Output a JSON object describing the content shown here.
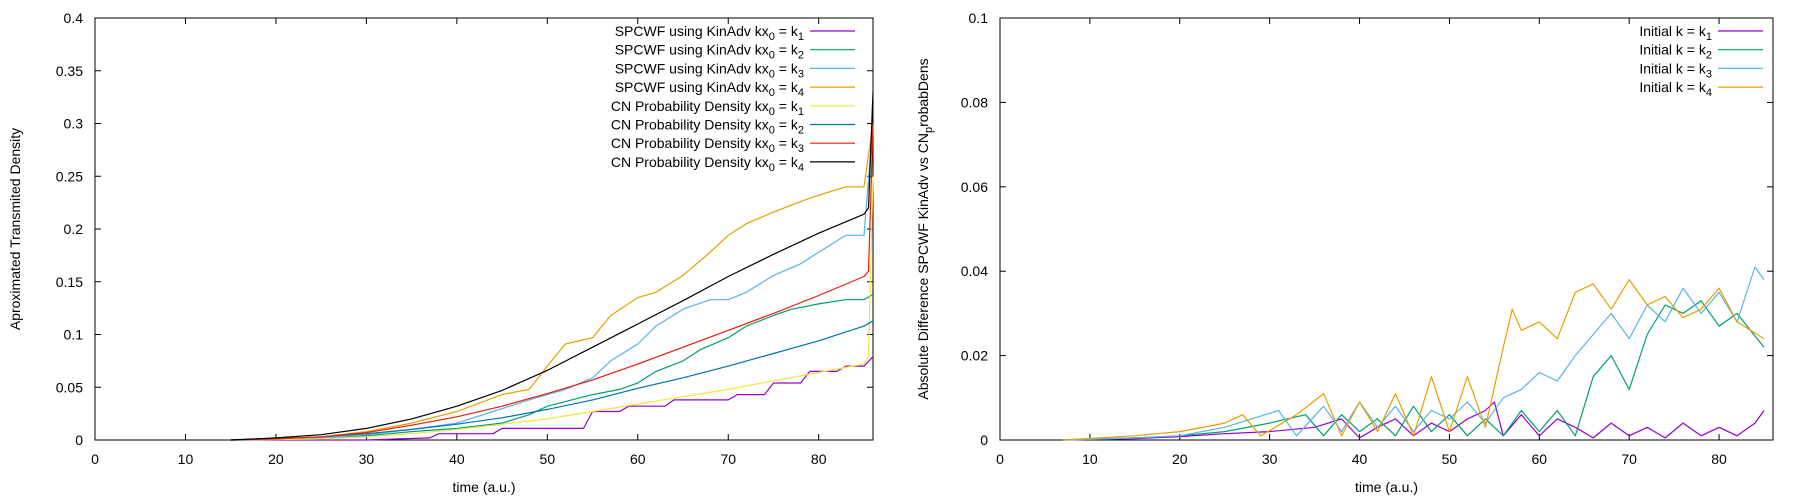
{
  "chart_data": [
    {
      "type": "line",
      "xlabel": "time (a.u.)",
      "ylabel": "Aproximated Transmited Density",
      "xlim": [
        0,
        86
      ],
      "ylim": [
        0,
        0.4
      ],
      "xticks": [
        0,
        10,
        20,
        30,
        40,
        50,
        60,
        70,
        80
      ],
      "yticks": [
        0,
        0.05,
        0.1,
        0.15,
        0.2,
        0.25,
        0.3,
        0.35,
        0.4
      ],
      "legend_position": "top-right",
      "series": [
        {
          "name": "SPCWF using KinAdv kx0 = k1",
          "legend": {
            "a": "SPCWF using KinAdv kx",
            "b": "0",
            "c": " = k",
            "d": "1"
          },
          "color": "#9400d3",
          "x": [
            15,
            30,
            37,
            38,
            44,
            45,
            54,
            55,
            58,
            59,
            63,
            64,
            70,
            71,
            74,
            75,
            78,
            79,
            82,
            83,
            85,
            86
          ],
          "y": [
            0,
            0,
            0.002,
            0.006,
            0.006,
            0.011,
            0.011,
            0.027,
            0.027,
            0.032,
            0.032,
            0.038,
            0.038,
            0.043,
            0.043,
            0.054,
            0.054,
            0.065,
            0.065,
            0.07,
            0.07,
            0.079
          ]
        },
        {
          "name": "SPCWF using KinAdv kx0 = k2",
          "legend": {
            "a": "SPCWF using KinAdv kx",
            "b": "0",
            "c": " = k",
            "d": "2"
          },
          "color": "#009e73",
          "x": [
            15,
            25,
            30,
            35,
            40,
            45,
            48,
            50,
            55,
            58,
            60,
            62,
            65,
            67,
            70,
            72,
            75,
            77,
            80,
            83,
            85,
            86
          ],
          "y": [
            0,
            0.001,
            0.004,
            0.008,
            0.011,
            0.016,
            0.024,
            0.032,
            0.043,
            0.048,
            0.054,
            0.065,
            0.075,
            0.086,
            0.097,
            0.108,
            0.118,
            0.124,
            0.129,
            0.133,
            0.133,
            0.138
          ]
        },
        {
          "name": "SPCWF using KinAdv kx0 = k3",
          "legend": {
            "a": "SPCWF using KinAdv kx",
            "b": "0",
            "c": " = k",
            "d": "3"
          },
          "color": "#56b4e9",
          "x": [
            15,
            25,
            30,
            35,
            40,
            44,
            48,
            52,
            55,
            57,
            60,
            62,
            65,
            68,
            70,
            72,
            75,
            78,
            80,
            83,
            85,
            86
          ],
          "y": [
            0,
            0.002,
            0.005,
            0.01,
            0.016,
            0.027,
            0.038,
            0.048,
            0.059,
            0.075,
            0.091,
            0.108,
            0.124,
            0.133,
            0.133,
            0.14,
            0.156,
            0.167,
            0.178,
            0.194,
            0.194,
            0.3
          ]
        },
        {
          "name": "SPCWF using KinAdv kx0 = k4",
          "legend": {
            "a": "SPCWF using KinAdv kx",
            "b": "0",
            "c": " = k",
            "d": "4"
          },
          "color": "#e69f00",
          "x": [
            15,
            25,
            30,
            35,
            40,
            45,
            48,
            50,
            52,
            55,
            57,
            60,
            62,
            65,
            68,
            70,
            72,
            75,
            78,
            80,
            83,
            85,
            86
          ],
          "y": [
            0,
            0.003,
            0.008,
            0.016,
            0.027,
            0.043,
            0.048,
            0.07,
            0.091,
            0.097,
            0.118,
            0.135,
            0.14,
            0.156,
            0.178,
            0.194,
            0.205,
            0.216,
            0.226,
            0.232,
            0.24,
            0.24,
            0.3
          ]
        },
        {
          "name": "CN Probability Density kx0 = k1",
          "legend": {
            "a": "CN Probability Density kx",
            "b": "0",
            "c": " = k",
            "d": "1"
          },
          "color": "#f0e442",
          "x": [
            15,
            20,
            25,
            30,
            35,
            40,
            45,
            50,
            55,
            60,
            65,
            70,
            75,
            80,
            85,
            85.5,
            86
          ],
          "y": [
            0,
            0.0005,
            0.001,
            0.003,
            0.006,
            0.01,
            0.015,
            0.02,
            0.027,
            0.034,
            0.041,
            0.048,
            0.056,
            0.064,
            0.072,
            0.08,
            0.25
          ]
        },
        {
          "name": "CN Probability Density kx0 = k2",
          "legend": {
            "a": "CN Probability Density kx",
            "b": "0",
            "c": " = k",
            "d": "2"
          },
          "color": "#0072b2",
          "x": [
            15,
            20,
            25,
            30,
            35,
            40,
            45,
            50,
            55,
            60,
            65,
            70,
            75,
            80,
            85,
            86
          ],
          "y": [
            0,
            0.001,
            0.003,
            0.006,
            0.01,
            0.015,
            0.021,
            0.029,
            0.038,
            0.049,
            0.059,
            0.07,
            0.082,
            0.094,
            0.108,
            0.113
          ]
        },
        {
          "name": "CN Probability Density kx0 = k3",
          "legend": {
            "a": "CN Probability Density kx",
            "b": "0",
            "c": " = k",
            "d": "3"
          },
          "color": "#e51e10",
          "x": [
            15,
            20,
            25,
            30,
            35,
            40,
            45,
            50,
            55,
            60,
            65,
            70,
            75,
            80,
            85,
            85.5,
            86
          ],
          "y": [
            0,
            0.001,
            0.003,
            0.007,
            0.014,
            0.022,
            0.032,
            0.044,
            0.057,
            0.072,
            0.088,
            0.104,
            0.12,
            0.137,
            0.155,
            0.16,
            0.3
          ]
        },
        {
          "name": "CN Probability Density kx0 = k4",
          "legend": {
            "a": "CN Probability Density kx",
            "b": "0",
            "c": " = k",
            "d": "4"
          },
          "color": "#000000",
          "x": [
            15,
            20,
            25,
            30,
            35,
            40,
            45,
            50,
            55,
            60,
            65,
            70,
            75,
            80,
            85,
            85.5,
            86
          ],
          "y": [
            0,
            0.002,
            0.005,
            0.011,
            0.02,
            0.032,
            0.047,
            0.066,
            0.088,
            0.11,
            0.132,
            0.155,
            0.176,
            0.196,
            0.214,
            0.22,
            0.33
          ]
        }
      ]
    },
    {
      "type": "line",
      "xlabel": "time (a.u.)",
      "ylabel": "Absolute Difference SPCWF KinAdv vs CNprobabDens",
      "ylabel_parts": {
        "a": "Absolute Difference SPCWF KinAdv vs CN",
        "b": "p",
        "c": "robabDens"
      },
      "xlim": [
        0,
        86
      ],
      "ylim": [
        0,
        0.1
      ],
      "xticks": [
        0,
        10,
        20,
        30,
        40,
        50,
        60,
        70,
        80
      ],
      "yticks": [
        0,
        0.02,
        0.04,
        0.06,
        0.08,
        0.1
      ],
      "legend_position": "top-right",
      "series": [
        {
          "name": "Initial k = k1",
          "legend": {
            "a": "Initial k = k",
            "b": "1"
          },
          "color": "#9400d3",
          "x": [
            7,
            15,
            20,
            25,
            30,
            35,
            38,
            40,
            42,
            44,
            46,
            48,
            50,
            52,
            54,
            55,
            56,
            58,
            60,
            62,
            64,
            66,
            68,
            70,
            72,
            74,
            76,
            78,
            80,
            82,
            84,
            85
          ],
          "y": [
            0,
            0.0003,
            0.0008,
            0.0015,
            0.002,
            0.003,
            0.005,
            0.0005,
            0.003,
            0.005,
            0.001,
            0.004,
            0.002,
            0.005,
            0.007,
            0.009,
            0.001,
            0.006,
            0.001,
            0.005,
            0.003,
            0.0005,
            0.004,
            0.001,
            0.003,
            0.0005,
            0.004,
            0.001,
            0.003,
            0.001,
            0.004,
            0.007
          ]
        },
        {
          "name": "Initial k = k2",
          "legend": {
            "a": "Initial k = k",
            "b": "2"
          },
          "color": "#009e73",
          "x": [
            7,
            15,
            20,
            25,
            30,
            34,
            36,
            38,
            40,
            42,
            44,
            46,
            48,
            50,
            52,
            54,
            56,
            58,
            60,
            62,
            64,
            66,
            68,
            70,
            72,
            74,
            76,
            78,
            80,
            82,
            85
          ],
          "y": [
            0,
            0.0005,
            0.001,
            0.002,
            0.004,
            0.006,
            0.001,
            0.006,
            0.002,
            0.005,
            0.001,
            0.008,
            0.002,
            0.006,
            0.001,
            0.005,
            0.001,
            0.007,
            0.002,
            0.007,
            0.001,
            0.015,
            0.02,
            0.012,
            0.025,
            0.032,
            0.03,
            0.033,
            0.027,
            0.03,
            0.022
          ]
        },
        {
          "name": "Initial k = k3",
          "legend": {
            "a": "Initial k = k",
            "b": "3"
          },
          "color": "#56b4e9",
          "x": [
            7,
            15,
            20,
            25,
            31,
            33,
            36,
            38,
            40,
            42,
            44,
            46,
            48,
            50,
            52,
            54,
            56,
            58,
            60,
            62,
            64,
            66,
            68,
            70,
            72,
            74,
            76,
            78,
            80,
            82,
            84,
            85
          ],
          "y": [
            0,
            0.0005,
            0.001,
            0.003,
            0.007,
            0.001,
            0.008,
            0.002,
            0.009,
            0.003,
            0.008,
            0.002,
            0.007,
            0.005,
            0.009,
            0.004,
            0.01,
            0.012,
            0.016,
            0.014,
            0.02,
            0.025,
            0.03,
            0.024,
            0.032,
            0.028,
            0.036,
            0.03,
            0.035,
            0.028,
            0.041,
            0.038
          ]
        },
        {
          "name": "Initial k = k4",
          "legend": {
            "a": "Initial k = k",
            "b": "4"
          },
          "color": "#e69f00",
          "x": [
            7,
            15,
            20,
            25,
            27,
            29,
            33,
            36,
            38,
            40,
            42,
            44,
            46,
            48,
            50,
            52,
            54,
            56,
            57,
            58,
            60,
            62,
            64,
            66,
            68,
            70,
            72,
            74,
            76,
            78,
            80,
            82,
            85
          ],
          "y": [
            0,
            0.001,
            0.002,
            0.004,
            0.006,
            0.001,
            0.006,
            0.011,
            0.001,
            0.009,
            0.002,
            0.011,
            0.001,
            0.015,
            0.002,
            0.015,
            0.003,
            0.022,
            0.031,
            0.026,
            0.028,
            0.024,
            0.035,
            0.037,
            0.031,
            0.038,
            0.032,
            0.034,
            0.029,
            0.031,
            0.036,
            0.028,
            0.024
          ]
        }
      ]
    }
  ]
}
